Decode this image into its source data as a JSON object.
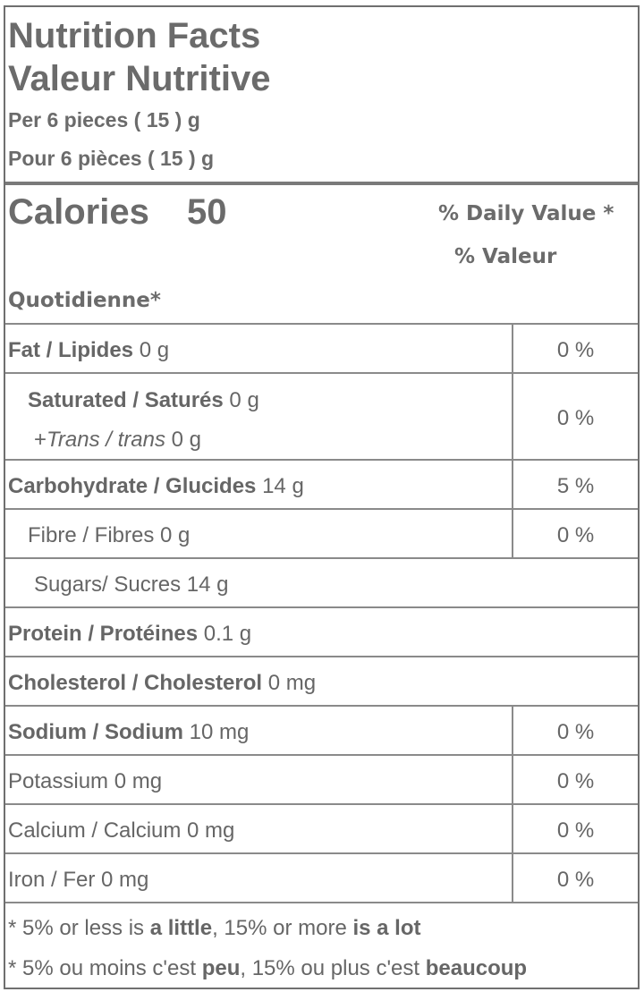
{
  "header": {
    "title_en": "Nutrition Facts",
    "title_fr": "Valeur Nutritive",
    "serving_en": "Per 6 pieces ( 15 ) g",
    "serving_fr": "Pour 6 pièces ( 15 ) g"
  },
  "calories": {
    "label": "Calories",
    "value": "50",
    "dv_line1": "% Daily Value *",
    "dv_line2": "% Valeur",
    "dv_line3": "Quotidienne*"
  },
  "rows": {
    "fat": {
      "name": "Fat / Lipides",
      "amount": "0 g",
      "dv": "0 %"
    },
    "saturated": {
      "name": "Saturated / Saturés",
      "amount": "0 g",
      "trans_prefix": "+",
      "trans_name": "Trans / trans",
      "trans_amount": "0 g",
      "dv": "0 %"
    },
    "carbohydrate": {
      "name": "Carbohydrate / Glucides",
      "amount": "14 g",
      "dv": "5 %"
    },
    "fibre": {
      "text": "Fibre / Fibres 0 g",
      "dv": "0 %"
    },
    "sugars": {
      "text": "Sugars/ Sucres 14 g"
    },
    "protein": {
      "name": "Protein / Protéines",
      "amount": "0.1 g"
    },
    "cholesterol": {
      "name": "Cholesterol / Cholesterol",
      "amount": "0 mg"
    },
    "sodium": {
      "name": "Sodium / Sodium",
      "amount": "10 mg",
      "dv": "0 %"
    },
    "potassium": {
      "text": "Potassium 0 mg",
      "dv": "0 %"
    },
    "calcium": {
      "text": "Calcium / Calcium 0 mg",
      "dv": "0 %"
    },
    "iron": {
      "text": "Iron / Fer 0 mg",
      "dv": "0 %"
    }
  },
  "footnote": {
    "en_a": "* 5% or less is ",
    "en_b": "a little",
    "en_c": ", 15% or more ",
    "en_d": "is a lot",
    "fr_a": "* 5% ou moins c'est ",
    "fr_b": "peu",
    "fr_c": ", 15% ou plus c'est ",
    "fr_d": "beaucoup"
  }
}
